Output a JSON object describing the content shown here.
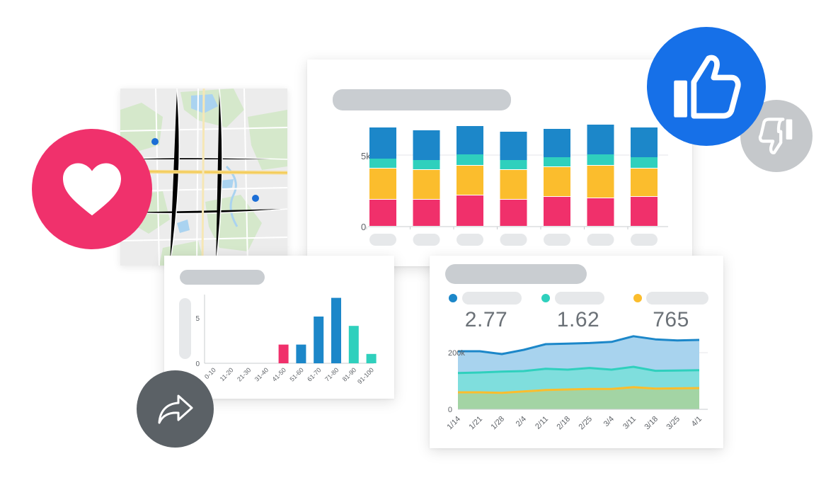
{
  "colors": {
    "blue": "#1c87c9",
    "teal": "#2fd0bd",
    "yellow": "#fbbd2d",
    "pink": "#f0306b",
    "heart_red": "#f0316c",
    "thumb_blue": "#1670e8",
    "thumb_gray": "#c5c8cb",
    "share_gray": "#5b6166",
    "placeholder": "#c9cdd1"
  },
  "icons": {
    "heart": "heart-icon",
    "thumbs_up": "thumbs-up-icon",
    "thumbs_down": "thumbs-down-icon",
    "share": "share-arrow-icon"
  },
  "map": {
    "markers": 2
  },
  "stacked_bar": {
    "y_ticks": [
      "5k",
      "0"
    ]
  },
  "histogram": {
    "y_ticks": [
      "5",
      "0"
    ]
  },
  "area": {
    "stats": [
      "2.77",
      "1.62",
      "765"
    ],
    "y_ticks": [
      "200k",
      "0"
    ]
  },
  "chart_data": [
    {
      "type": "bar",
      "stacked": true,
      "categories": [
        "",
        "",
        "",
        "",
        "",
        "",
        ""
      ],
      "ylim": [
        0,
        7000
      ],
      "grid": true,
      "series": [
        {
          "color": "#f0306b",
          "values": [
            1900,
            1900,
            2200,
            1900,
            2100,
            2000,
            2100
          ]
        },
        {
          "color": "#fbbd2d",
          "values": [
            2200,
            2100,
            2100,
            2100,
            2100,
            2300,
            2000
          ]
        },
        {
          "color": "#2fd0bd",
          "values": [
            700,
            700,
            800,
            700,
            700,
            800,
            800
          ]
        },
        {
          "color": "#1c87c9",
          "values": [
            2200,
            2100,
            2000,
            2000,
            2000,
            2100,
            2100
          ]
        }
      ]
    },
    {
      "type": "bar",
      "categories": [
        "0-10",
        "11-20",
        "21-30",
        "31-40",
        "41-50",
        "51-60",
        "61-70",
        "71-80",
        "81-90",
        "91-100"
      ],
      "values": [
        0,
        0,
        0,
        0,
        2,
        2,
        5,
        7,
        4,
        1
      ],
      "colors": [
        "#f0306b",
        "#f0306b",
        "#f0306b",
        "#f0306b",
        "#f0306b",
        "#1c87c9",
        "#1c87c9",
        "#1c87c9",
        "#2fd0bd",
        "#2fd0bd"
      ],
      "ylim": [
        0,
        7.5
      ]
    },
    {
      "type": "area",
      "x": [
        "1/14",
        "1/21",
        "1/28",
        "2/4",
        "2/11",
        "2/18",
        "2/25",
        "3/4",
        "3/11",
        "3/18",
        "3/25",
        "4/1"
      ],
      "ylim": [
        0,
        250000
      ],
      "series": [
        {
          "color": "#1c87c9",
          "values": [
            205000,
            205000,
            195000,
            210000,
            230000,
            232000,
            234000,
            238000,
            258000,
            247000,
            243000,
            245000
          ]
        },
        {
          "color": "#2fd0bd",
          "values": [
            128000,
            130000,
            133000,
            135000,
            143000,
            140000,
            146000,
            140000,
            150000,
            136000,
            137000,
            138000
          ]
        },
        {
          "color": "#fbbd2d",
          "values": [
            60000,
            60000,
            58000,
            63000,
            68000,
            70000,
            72000,
            72000,
            78000,
            73000,
            74000,
            75000
          ]
        }
      ]
    }
  ]
}
